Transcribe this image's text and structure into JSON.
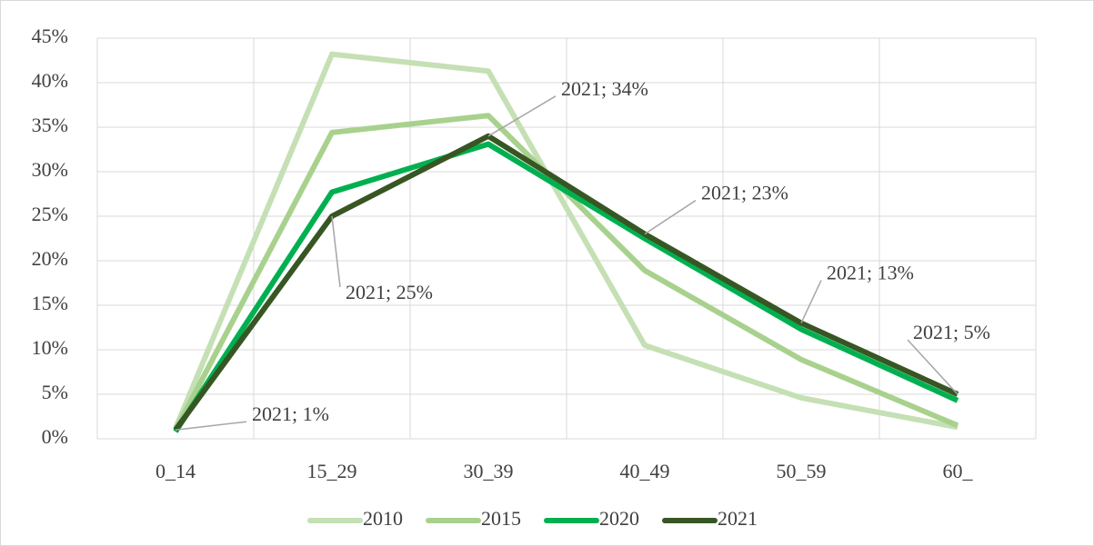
{
  "chart_data": {
    "type": "line",
    "categories": [
      "0_14",
      "15_29",
      "30_39",
      "40_49",
      "50_59",
      "60_"
    ],
    "series": [
      {
        "name": "2010",
        "color": "#c5e0b4",
        "values": [
          1.2,
          43.2,
          41.3,
          10.5,
          4.6,
          1.3
        ]
      },
      {
        "name": "2015",
        "color": "#a9d18e",
        "values": [
          1,
          34.4,
          36.3,
          18.9,
          8.9,
          1.5
        ]
      },
      {
        "name": "2020",
        "color": "#00b050",
        "values": [
          0.8,
          27.7,
          33.1,
          22.5,
          12.3,
          4.3
        ]
      },
      {
        "name": "2021",
        "color": "#375623",
        "values": [
          1,
          25,
          34,
          23,
          13,
          5
        ],
        "value_labels": [
          "2021; 1%",
          "2021; 25%",
          "2021; 34%",
          "2021; 23%",
          "2021; 13%",
          "2021; 5%"
        ]
      }
    ],
    "ylim": [
      0,
      45
    ],
    "yticks": [
      {
        "value": 0,
        "label": "0%"
      },
      {
        "value": 5,
        "label": "5%"
      },
      {
        "value": 10,
        "label": "10%"
      },
      {
        "value": 15,
        "label": "15%"
      },
      {
        "value": 20,
        "label": "20%"
      },
      {
        "value": 25,
        "label": "25%"
      },
      {
        "value": 30,
        "label": "30%"
      },
      {
        "value": 35,
        "label": "35%"
      },
      {
        "value": 40,
        "label": "40%"
      },
      {
        "value": 45,
        "label": "45%"
      }
    ],
    "grid": true,
    "legend": "bottom"
  }
}
